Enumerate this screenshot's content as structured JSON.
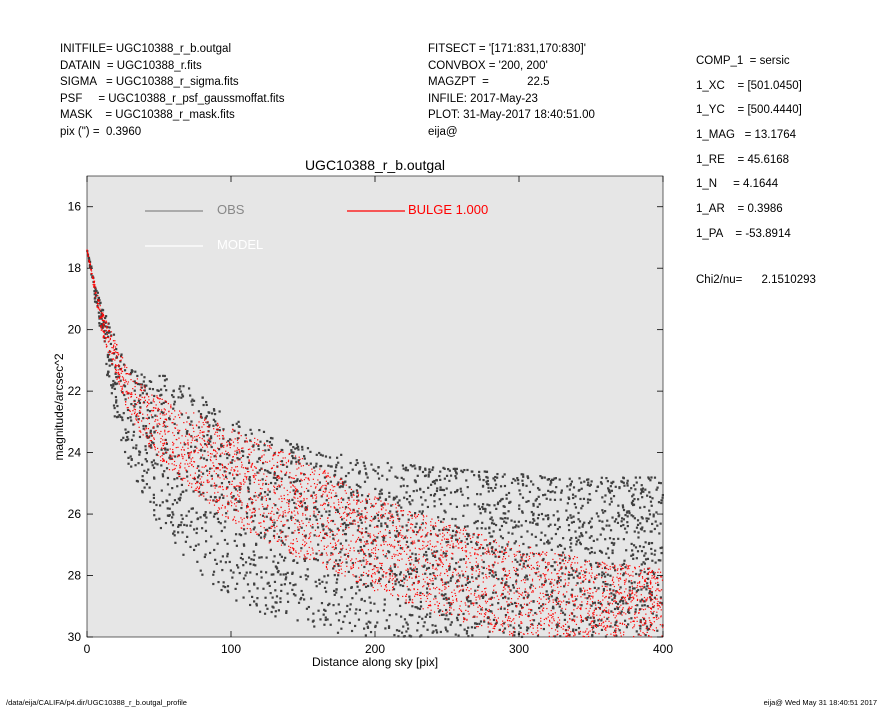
{
  "header_left": [
    "INITFILE= UGC10388_r_b.outgal",
    "DATAIN  = UGC10388_r.fits",
    "SIGMA   = UGC10388_r_sigma.fits",
    "PSF     = UGC10388_r_psf_gaussmoffat.fits",
    "MASK    = UGC10388_r_mask.fits",
    "pix (\") =  0.3960"
  ],
  "header_mid": [
    "FITSECT = '[171:831,170:830]'",
    "CONVBOX = '200, 200'",
    "MAGZPT  =            22.5",
    "INFILE: 2017-May-23",
    "PLOT: 31-May-2017 18:40:51.00",
    "eija@"
  ],
  "header_right": [
    "COMP_1  = sersic",
    "1_XC    = [501.0450]",
    "1_YC    = [500.4440]",
    "1_MAG   = 13.1764",
    "1_RE    = 45.6168",
    "1_N     = 4.1644",
    "1_AR    = 0.3986",
    "1_PA    = -53.8914"
  ],
  "chi": "Chi2/nu=      2.1510293",
  "footer_path": "/data/eija/CALIFA/p4.dir/UGC10388_r_b.outgal_profile",
  "footer_stamp": "eija@  Wed May 31 18:40:51 2017",
  "chart_data": {
    "type": "scatter",
    "title": "UGC10388_r_b.outgal",
    "xlabel": "Distance along sky [pix]",
    "ylabel": "magnitude/arcsec^2",
    "xlim": [
      0,
      400
    ],
    "ylim": [
      30,
      15
    ],
    "y_inverted": true,
    "xticks": [
      0,
      100,
      200,
      300,
      400
    ],
    "yticks": [
      16,
      18,
      20,
      22,
      24,
      26,
      28,
      30
    ],
    "background": "#e6e6e6",
    "series": [
      {
        "name": "OBS",
        "color": "#888888",
        "marker_color": "#404040",
        "upper_envelope": [
          [
            0,
            17.4
          ],
          [
            10,
            19.2
          ],
          [
            20,
            20.3
          ],
          [
            30,
            21.3
          ],
          [
            45,
            21.5
          ],
          [
            60,
            21.5
          ],
          [
            75,
            22.0
          ],
          [
            100,
            22.9
          ],
          [
            150,
            23.8
          ],
          [
            200,
            24.3
          ],
          [
            250,
            24.5
          ],
          [
            300,
            24.7
          ],
          [
            350,
            24.8
          ],
          [
            400,
            24.8
          ]
        ],
        "lower_envelope": [
          [
            0,
            17.4
          ],
          [
            10,
            20.5
          ],
          [
            20,
            23.0
          ],
          [
            30,
            24.6
          ],
          [
            50,
            26.5
          ],
          [
            80,
            28.0
          ],
          [
            100,
            28.8
          ],
          [
            130,
            29.4
          ],
          [
            160,
            29.8
          ],
          [
            200,
            30.0
          ],
          [
            300,
            30.0
          ],
          [
            400,
            30.0
          ]
        ]
      },
      {
        "name": "MODEL",
        "color": "#ffffff"
      },
      {
        "name": "BULGE  1.000",
        "color": "#ff0000",
        "upper_envelope": [
          [
            0,
            17.4
          ],
          [
            10,
            19.3
          ],
          [
            20,
            20.4
          ],
          [
            30,
            21.4
          ],
          [
            50,
            22.2
          ],
          [
            100,
            23.2
          ],
          [
            150,
            24.2
          ],
          [
            200,
            25.4
          ],
          [
            250,
            26.3
          ],
          [
            300,
            27.0
          ],
          [
            350,
            27.5
          ],
          [
            400,
            27.8
          ]
        ],
        "lower_envelope": [
          [
            0,
            17.4
          ],
          [
            10,
            20.1
          ],
          [
            20,
            21.5
          ],
          [
            30,
            22.9
          ],
          [
            50,
            24.3
          ],
          [
            100,
            26.3
          ],
          [
            150,
            27.5
          ],
          [
            200,
            28.5
          ],
          [
            250,
            29.4
          ],
          [
            290,
            30.0
          ]
        ]
      }
    ],
    "legend": [
      {
        "label": "OBS",
        "color": "#888888"
      },
      {
        "label": "BULGE  1.000",
        "color": "#ff0000"
      },
      {
        "label": "MODEL",
        "color": "#ffffff"
      }
    ]
  }
}
